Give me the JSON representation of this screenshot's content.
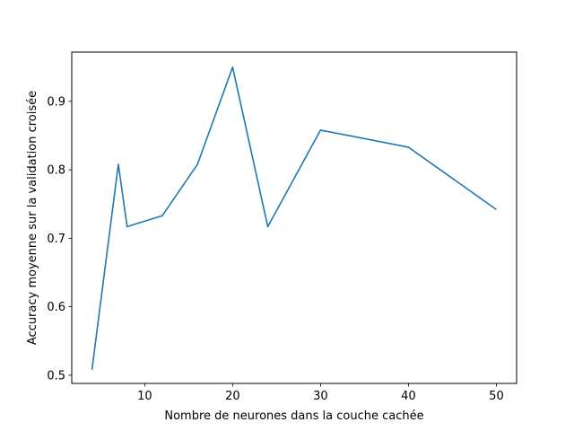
{
  "chart_data": {
    "type": "line",
    "title": "",
    "xlabel": "Nombre de neurones dans la couche cachée",
    "ylabel": "Accuracy moyenne sur la validation croisée",
    "xlim": [
      1.7,
      52.3
    ],
    "ylim": [
      0.488,
      0.972
    ],
    "xticks": [
      10,
      20,
      30,
      40,
      50
    ],
    "yticks": [
      0.5,
      0.6,
      0.7,
      0.8,
      0.9
    ],
    "xtick_labels": [
      "10",
      "20",
      "30",
      "40",
      "50"
    ],
    "ytick_labels": [
      "0.5",
      "0.6",
      "0.7",
      "0.8",
      "0.9"
    ],
    "grid": false,
    "series": [
      {
        "color": "#1f77b4",
        "x": [
          4,
          7,
          8,
          12,
          16,
          20,
          24,
          30,
          40,
          50
        ],
        "y": [
          0.508,
          0.808,
          0.717,
          0.733,
          0.808,
          0.95,
          0.717,
          0.858,
          0.833,
          0.742
        ]
      }
    ]
  }
}
